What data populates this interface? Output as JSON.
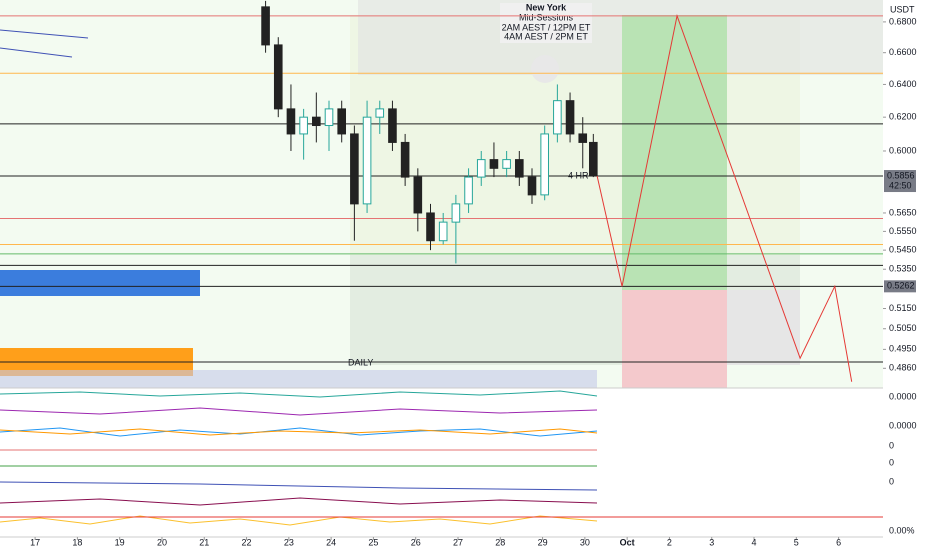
{
  "chart_data": {
    "type": "candlestick",
    "currency": "USDT",
    "session": {
      "title": "New York",
      "subtitle": "Mid-Sessions",
      "line1": "2AM AEST / 12PM ET",
      "line2": "4AM AEST / 2PM ET"
    },
    "annotations": [
      "DAILY",
      "4 HR"
    ],
    "countdown": "42:50",
    "log_scale": true,
    "xlim": [
      16.17,
      37.05
    ],
    "ylim": [
      0.4768,
      0.6946
    ],
    "xticks": [
      17,
      18,
      19,
      20,
      21,
      22,
      23,
      24,
      25,
      26,
      27,
      28,
      29,
      30,
      {
        "value": 31,
        "label": "Oct"
      },
      {
        "value": 32,
        "label": "2"
      },
      {
        "value": 33,
        "label": "3"
      },
      {
        "value": 34,
        "label": "4"
      },
      {
        "value": 35,
        "label": "5"
      },
      {
        "value": 36,
        "label": "6"
      }
    ],
    "yticks": [
      {
        "value": 0.68,
        "label": "0.6800"
      },
      {
        "value": 0.66,
        "label": "0.6600"
      },
      {
        "value": 0.64,
        "label": "0.6400"
      },
      {
        "value": 0.62,
        "label": "0.6200"
      },
      {
        "value": 0.6,
        "label": "0.6000"
      },
      {
        "value": 0.565,
        "label": "0.5650"
      },
      {
        "value": 0.555,
        "label": "0.5550"
      },
      {
        "value": 0.545,
        "label": "0.5450"
      },
      {
        "value": 0.535,
        "label": "0.5350"
      },
      {
        "value": 0.515,
        "label": "0.5150"
      },
      {
        "value": 0.505,
        "label": "0.5050"
      },
      {
        "value": 0.495,
        "label": "0.4950"
      },
      {
        "value": 0.486,
        "label": "0.4860"
      }
    ],
    "price_tags": [
      {
        "value": 0.5856,
        "color": "#787b86"
      },
      {
        "value": 0.5262,
        "color": "#787b86"
      }
    ],
    "levels": [
      {
        "value": 0.684,
        "color": "#e57373"
      },
      {
        "value": 0.647,
        "color": "#ffb74d"
      },
      {
        "value": 0.616,
        "color": "#222222"
      },
      {
        "value": 0.5856,
        "color": "#222222"
      },
      {
        "value": 0.562,
        "color": "#e57373"
      },
      {
        "value": 0.548,
        "color": "#ffb74d"
      },
      {
        "value": 0.543,
        "color": "#66bb6a"
      },
      {
        "value": 0.537,
        "color": "#222222"
      },
      {
        "value": 0.5262,
        "color": "#222222"
      },
      {
        "value": 0.489,
        "color": "#222222"
      }
    ],
    "up_color": "#26a69a",
    "down_color": "#222222",
    "x": [
      22.45,
      22.75,
      23.05,
      23.35,
      23.65,
      23.95,
      24.25,
      24.55,
      24.85,
      25.15,
      25.45,
      25.75,
      26.05,
      26.35,
      26.65,
      26.95,
      27.25,
      27.55,
      27.85,
      28.15,
      28.45,
      28.75,
      29.05,
      29.35,
      29.65,
      29.95,
      30.2
    ],
    "open": [
      0.69,
      0.665,
      0.625,
      0.61,
      0.62,
      0.615,
      0.625,
      0.61,
      0.57,
      0.62,
      0.625,
      0.605,
      0.585,
      0.565,
      0.55,
      0.56,
      0.57,
      0.585,
      0.595,
      0.59,
      0.595,
      0.585,
      0.575,
      0.61,
      0.63,
      0.61,
      0.605
    ],
    "high": [
      0.694,
      0.67,
      0.64,
      0.625,
      0.635,
      0.63,
      0.63,
      0.615,
      0.63,
      0.63,
      0.63,
      0.61,
      0.59,
      0.57,
      0.565,
      0.575,
      0.59,
      0.6,
      0.605,
      0.6,
      0.6,
      0.59,
      0.615,
      0.64,
      0.635,
      0.62,
      0.61
    ],
    "low": [
      0.66,
      0.62,
      0.6,
      0.595,
      0.605,
      0.6,
      0.605,
      0.55,
      0.565,
      0.61,
      0.6,
      0.58,
      0.555,
      0.545,
      0.548,
      0.538,
      0.565,
      0.58,
      0.585,
      0.585,
      0.58,
      0.57,
      0.572,
      0.605,
      0.605,
      0.59,
      0.585
    ],
    "close": [
      0.665,
      0.625,
      0.61,
      0.62,
      0.615,
      0.625,
      0.61,
      0.57,
      0.62,
      0.625,
      0.605,
      0.585,
      0.565,
      0.55,
      0.56,
      0.57,
      0.585,
      0.595,
      0.59,
      0.595,
      0.585,
      0.575,
      0.61,
      0.63,
      0.61,
      0.605,
      0.5856
    ],
    "projection": {
      "color": "#e53935",
      "x": [
        30.29,
        30.88,
        32.18,
        35.09,
        35.91,
        36.31
      ],
      "values": [
        0.5856,
        0.5262,
        0.684,
        0.4908,
        0.5262,
        0.4797
      ]
    },
    "indicator_labels": [
      "0.0000",
      "0.0000",
      "0",
      "0",
      "0",
      "0.00%"
    ]
  }
}
